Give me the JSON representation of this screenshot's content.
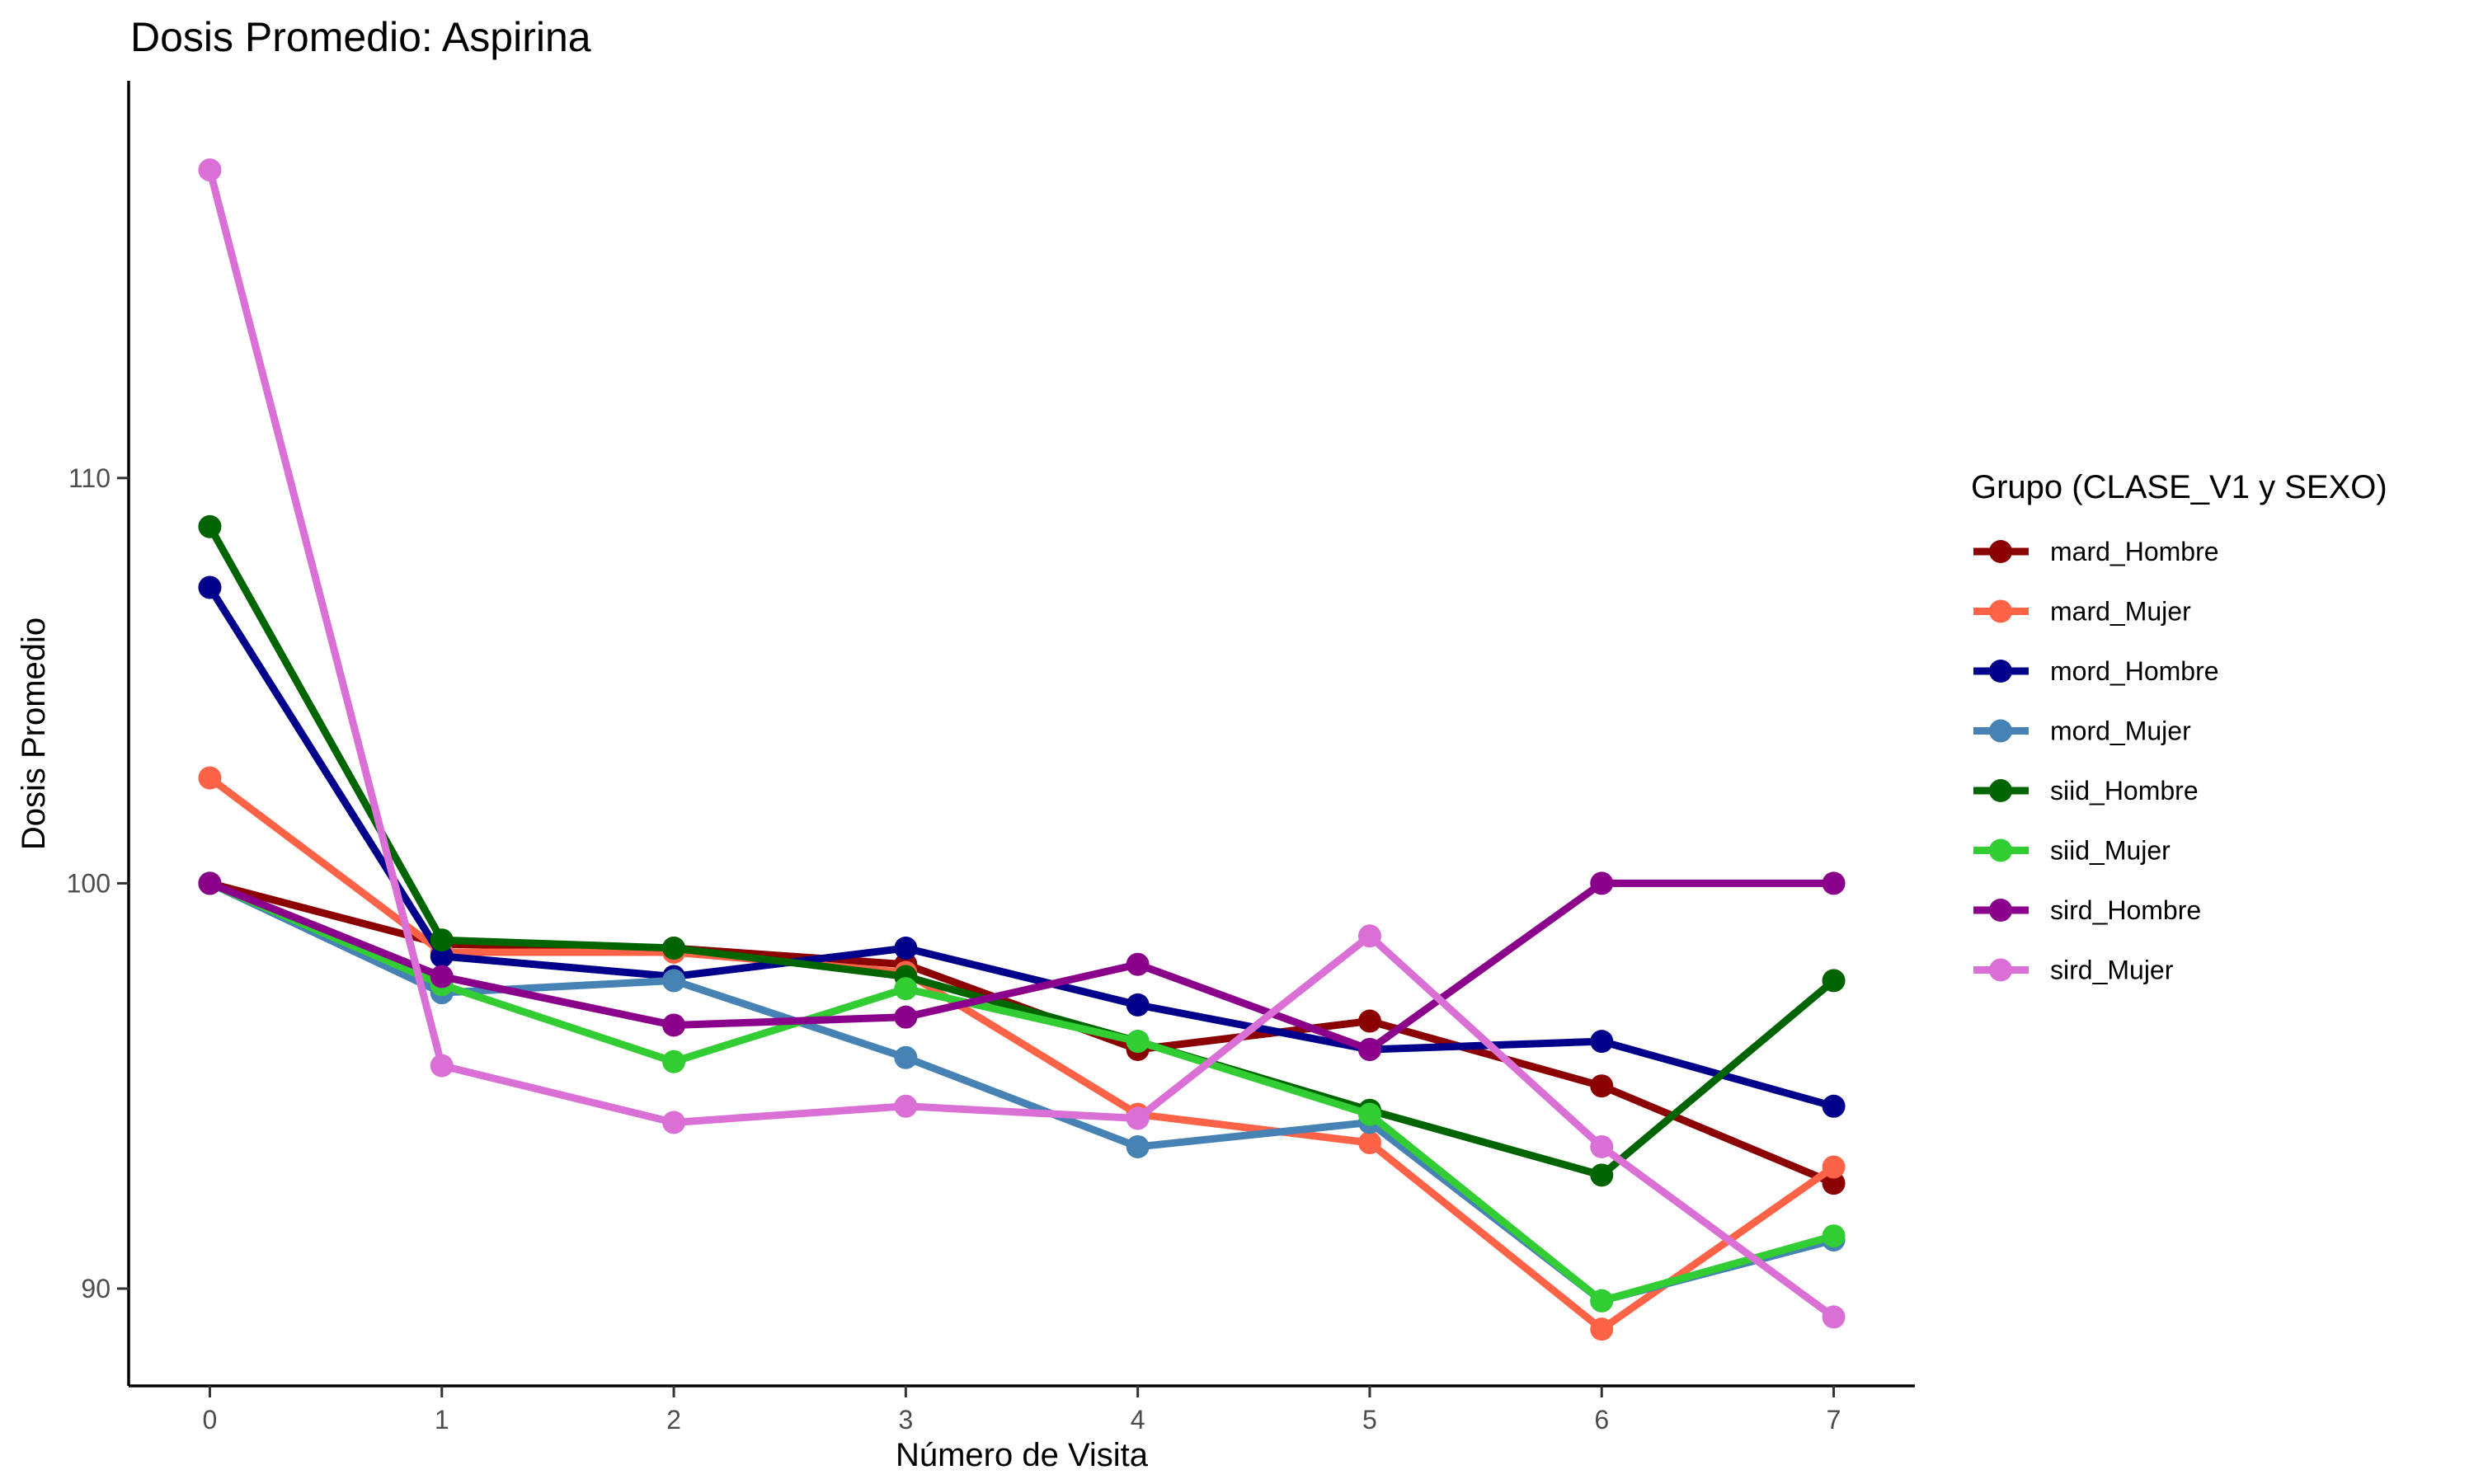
{
  "chart_data": {
    "type": "line",
    "title": "Dosis Promedio: Aspirina",
    "xlabel": "Número de Visita",
    "ylabel": "Dosis Promedio",
    "x": [
      0,
      1,
      2,
      3,
      4,
      5,
      6,
      7
    ],
    "x_ticks": [
      "0",
      "1",
      "2",
      "3",
      "4",
      "5",
      "6",
      "7"
    ],
    "y_ticks": [
      "90",
      "100",
      "110"
    ],
    "xlim": [
      -0.35,
      7.35
    ],
    "ylim": [
      87.6,
      119.8
    ],
    "grid": false,
    "legend": {
      "title": "Grupo (CLASE_V1 y SEXO)",
      "position": "right"
    },
    "series": [
      {
        "name": "mard_Hombre",
        "color": "#8B0000",
        "values": [
          100,
          98.5,
          98.4,
          98.0,
          95.9,
          96.6,
          95.0,
          92.6
        ]
      },
      {
        "name": "mard_Mujer",
        "color": "#FF6347",
        "values": [
          102.6,
          98.3,
          98.3,
          97.8,
          94.3,
          93.6,
          89.0,
          93.0
        ]
      },
      {
        "name": "mord_Hombre",
        "color": "#00008B",
        "values": [
          107.3,
          98.2,
          97.7,
          98.4,
          97.0,
          95.9,
          96.1,
          94.5
        ]
      },
      {
        "name": "mord_Mujer",
        "color": "#4682B4",
        "values": [
          100,
          97.3,
          97.6,
          95.7,
          93.5,
          94.1,
          89.7,
          91.2
        ]
      },
      {
        "name": "siid_Hombre",
        "color": "#006400",
        "values": [
          108.8,
          98.6,
          98.4,
          97.7,
          96.1,
          94.4,
          92.8,
          97.6
        ]
      },
      {
        "name": "siid_Mujer",
        "color": "#32CD32",
        "values": [
          100,
          97.5,
          95.6,
          97.4,
          96.1,
          94.3,
          89.7,
          91.3
        ]
      },
      {
        "name": "sird_Hombre",
        "color": "#8B008B",
        "values": [
          100,
          97.7,
          96.5,
          96.7,
          98.0,
          95.9,
          100,
          100
        ]
      },
      {
        "name": "sird_Mujer",
        "color": "#DA70D6",
        "values": [
          117.6,
          95.5,
          94.1,
          94.5,
          94.2,
          98.7,
          93.5,
          89.3
        ]
      }
    ]
  }
}
